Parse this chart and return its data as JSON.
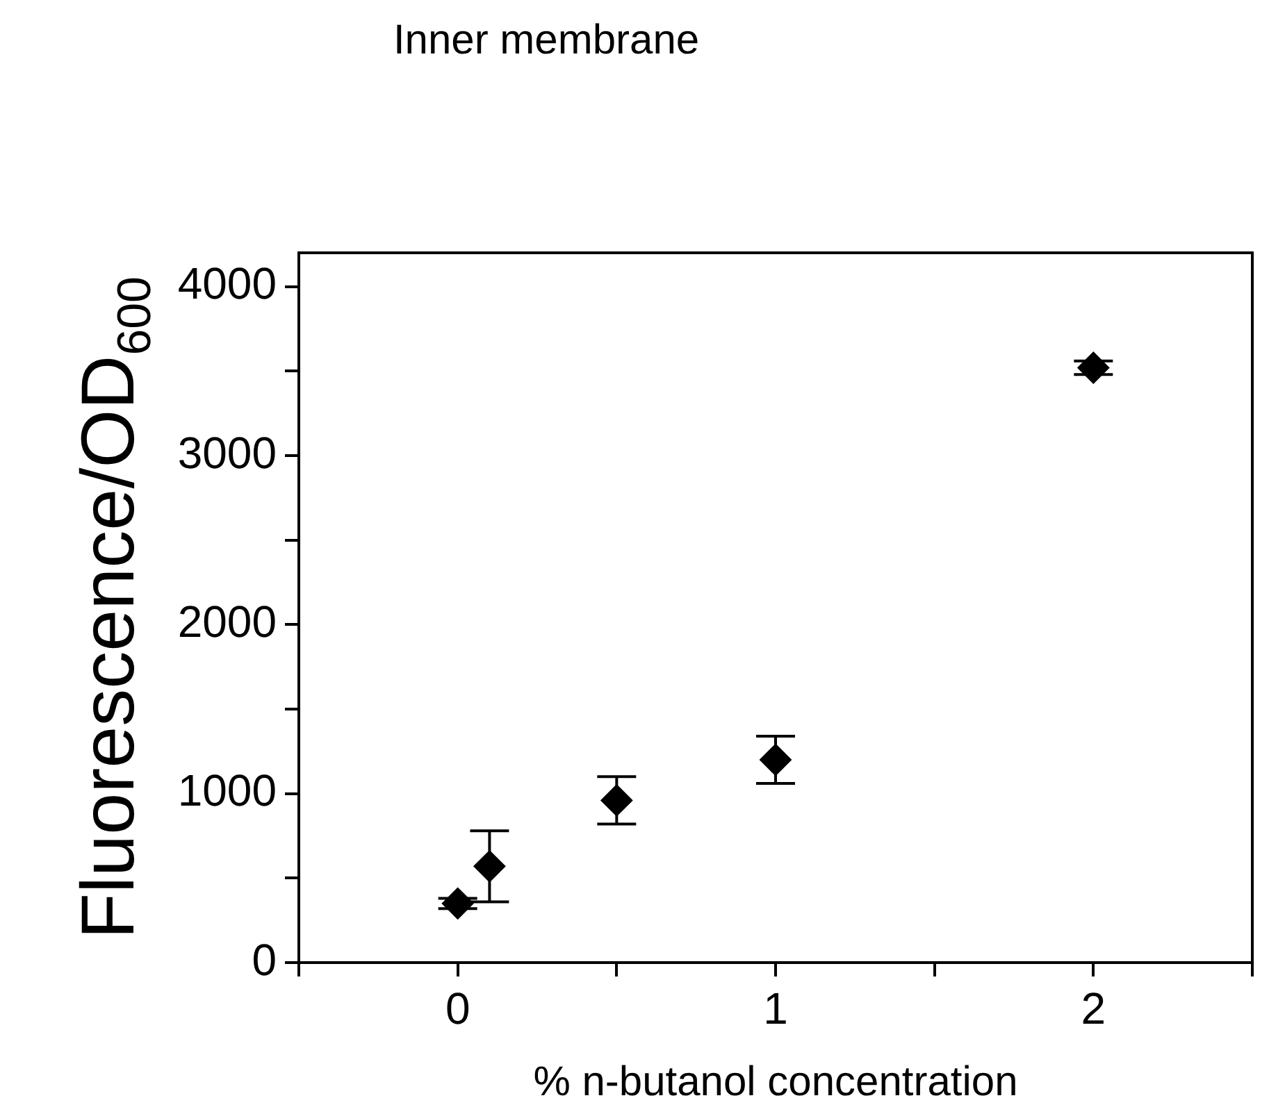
{
  "chart_data": {
    "type": "scatter",
    "title": "Inner membrane",
    "xlabel": "% n-butanol concentration",
    "ylabel": "Fluorescence/OD$_{600}$",
    "x": [
      0,
      0.1,
      0.5,
      1,
      2
    ],
    "series": [
      {
        "color": "#000000",
        "values": [
          350,
          570,
          960,
          1200,
          3520
        ],
        "errors": [
          30,
          210,
          140,
          140,
          40
        ]
      }
    ],
    "xlim": [
      -0.5,
      2.5
    ],
    "xticks": [
      {
        "value": -0.5,
        "label": null
      },
      0,
      {
        "value": 0.5,
        "label": null
      },
      1,
      {
        "value": 1.5,
        "label": null
      },
      2,
      {
        "value": 2.5,
        "label": null
      }
    ],
    "ylim": [
      0,
      4200
    ],
    "yticks": [
      0,
      {
        "value": 500,
        "label": null
      },
      1000,
      {
        "value": 1500,
        "label": null
      },
      2000,
      {
        "value": 2500,
        "label": null
      },
      3000,
      {
        "value": 3500,
        "label": null
      },
      4000
    ],
    "grid": false,
    "legend": false,
    "marker": "diamond"
  }
}
